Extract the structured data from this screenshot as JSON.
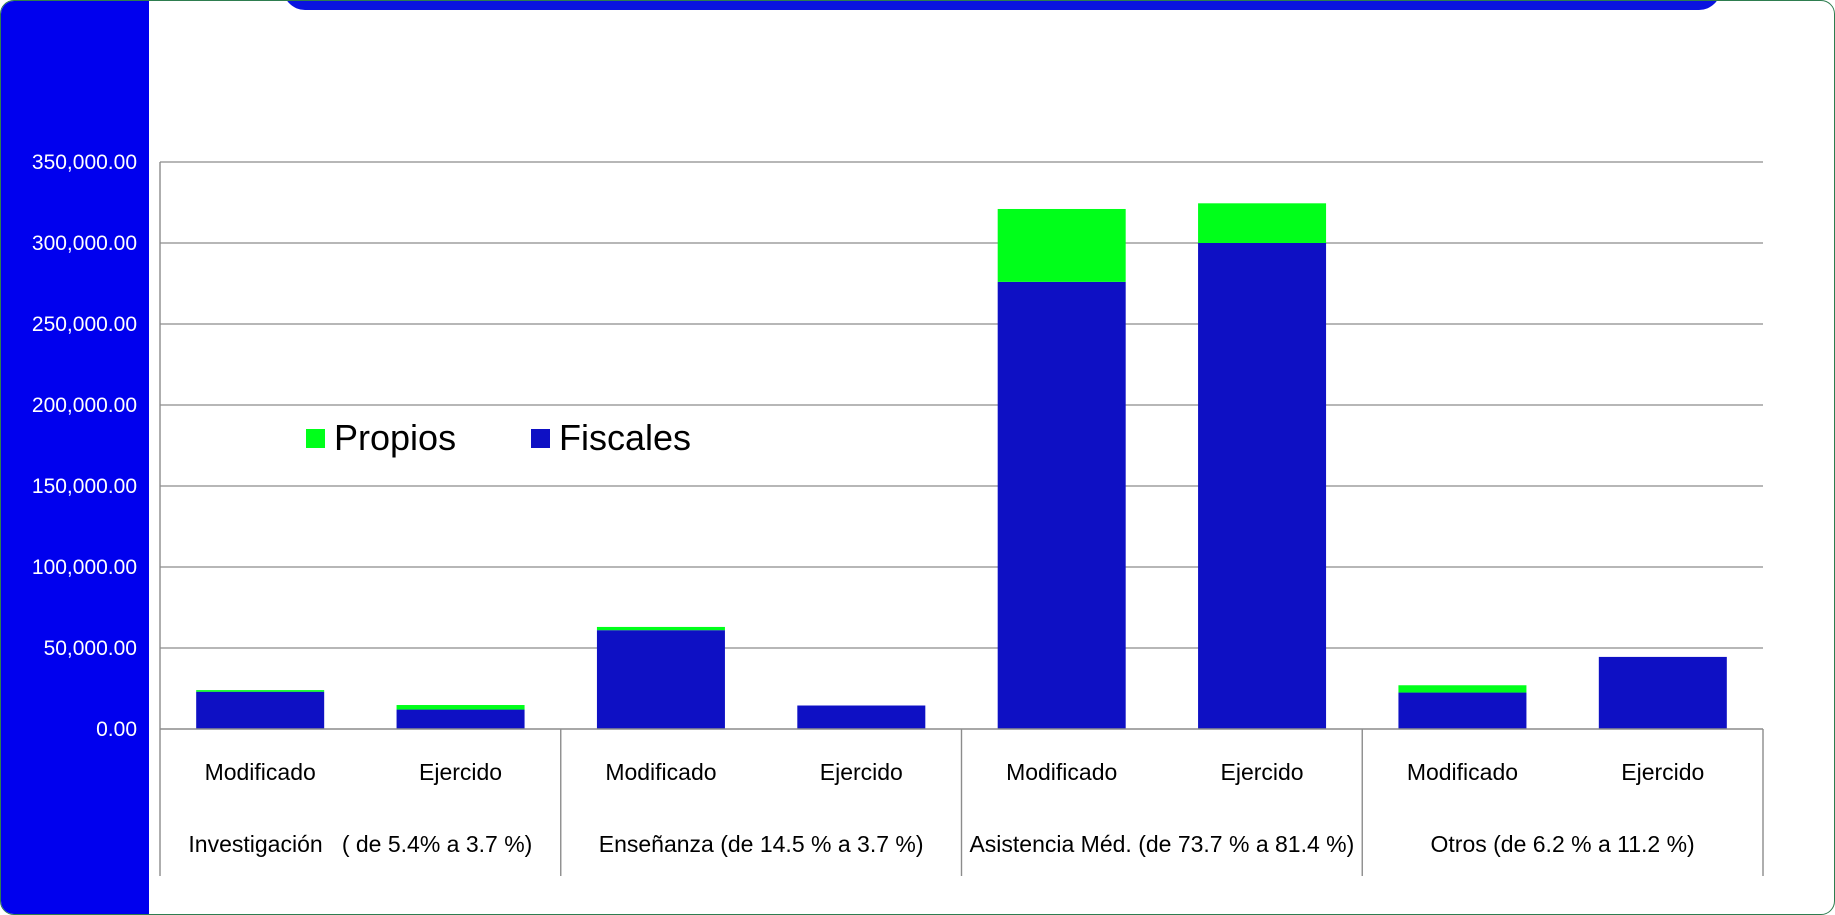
{
  "chart_data": {
    "type": "bar",
    "stacked": true,
    "y_tick_labels": [
      "350,000.00",
      "300,000.00",
      "250,000.00",
      "200,000.00",
      "150,000.00",
      "100,000.00",
      "50,000.00",
      "0.00"
    ],
    "ylim": [
      0,
      350000
    ],
    "y_tick_step": 50000,
    "grid": true,
    "categories": [
      "Modificado",
      "Ejercido",
      "Modificado",
      "Ejercido",
      "Modificado",
      "Ejercido",
      "Modificado",
      "Ejercido"
    ],
    "groups": [
      {
        "label": "Investigación   ( de 5.4% a 3.7 %)",
        "span": 2
      },
      {
        "label": "Enseñanza (de 14.5 % a 3.7 %)",
        "span": 2
      },
      {
        "label": "Asistencia Méd. (de 73.7 % a 81.4 %)",
        "span": 2
      },
      {
        "label": "Otros (de 6.2 % a 11.2 %)",
        "span": 2
      }
    ],
    "series": [
      {
        "name": "Fiscales",
        "color": "#0e10c4",
        "values": [
          23000,
          12000,
          61000,
          14500,
          276000,
          300000,
          22500,
          44500
        ]
      },
      {
        "name": "Propios",
        "color": "#00ff1a",
        "values": [
          1000,
          2800,
          2000,
          0,
          45000,
          24500,
          4500,
          0
        ]
      }
    ],
    "legend": {
      "position": "upper-left inside plot",
      "items": [
        {
          "name": "Propios",
          "color": "#00ff1a"
        },
        {
          "name": "Fiscales",
          "color": "#0e10c4"
        }
      ]
    }
  },
  "colors": {
    "side_band": "#0000ee",
    "title_bar": "#0a13e0",
    "gridline": "#8c8c8c"
  }
}
